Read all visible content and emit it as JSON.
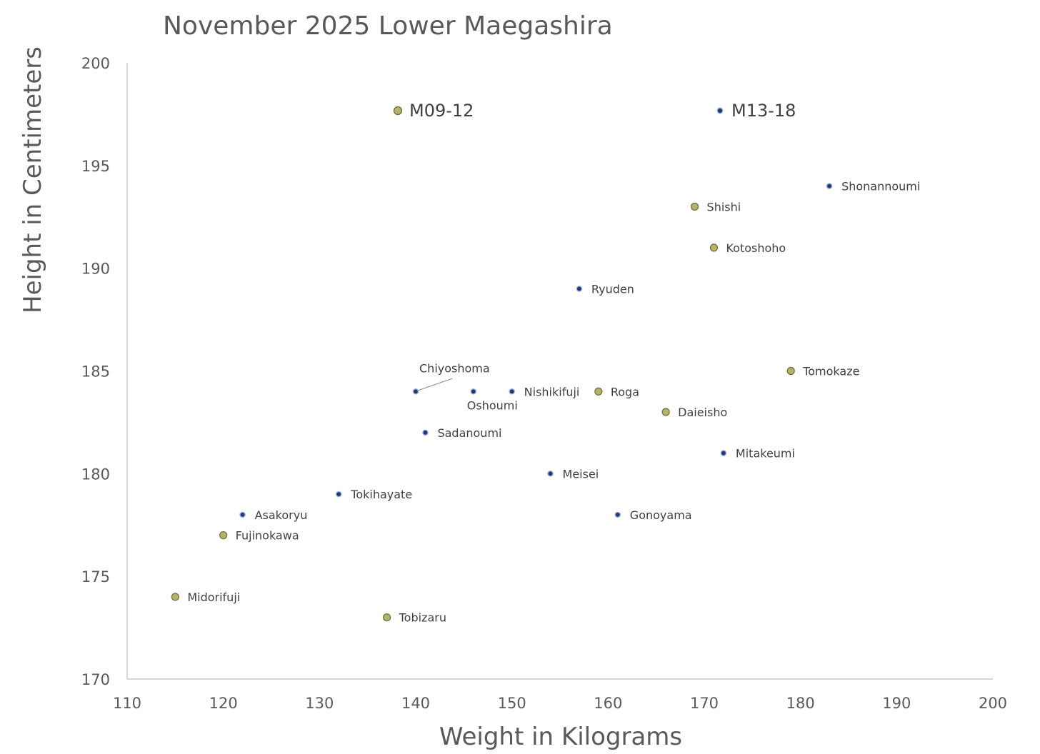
{
  "chart_data": {
    "type": "scatter",
    "title": "November 2025 Lower Maegashira",
    "xlabel": "Weight in Kilograms",
    "ylabel": "Height in Centimeters",
    "xlim": [
      110,
      200
    ],
    "ylim": [
      170,
      200
    ],
    "xticks": [
      110,
      120,
      130,
      140,
      150,
      160,
      170,
      180,
      190,
      200
    ],
    "yticks": [
      170,
      175,
      180,
      185,
      190,
      195,
      200
    ],
    "grid": false,
    "legend": "top",
    "series": [
      {
        "name": "M09-12",
        "color": "#b3b36b",
        "edge_color": "#6e6e3a",
        "points": [
          {
            "label": "Shishi",
            "x": 169,
            "y": 193
          },
          {
            "label": "Kotoshoho",
            "x": 171,
            "y": 191
          },
          {
            "label": "Tomokaze",
            "x": 179,
            "y": 185
          },
          {
            "label": "Roga",
            "x": 159,
            "y": 184
          },
          {
            "label": "Daieisho",
            "x": 166,
            "y": 183
          },
          {
            "label": "Fujinokawa",
            "x": 120,
            "y": 177
          },
          {
            "label": "Midorifuji",
            "x": 115,
            "y": 174
          },
          {
            "label": "Tobizaru",
            "x": 137,
            "y": 173
          }
        ]
      },
      {
        "name": "M13-18",
        "color": "#1f3a6e",
        "edge_color": "#9fb3d9",
        "points": [
          {
            "label": "Shonannoumi",
            "x": 183,
            "y": 194
          },
          {
            "label": "Ryuden",
            "x": 157,
            "y": 189
          },
          {
            "label": "Chiyoshoma",
            "x": 140,
            "y": 184
          },
          {
            "label": "Oshoumi",
            "x": 146,
            "y": 184
          },
          {
            "label": "Nishikifuji",
            "x": 150,
            "y": 184
          },
          {
            "label": "Sadanoumi",
            "x": 141,
            "y": 182
          },
          {
            "label": "Mitakeumi",
            "x": 172,
            "y": 181
          },
          {
            "label": "Meisei",
            "x": 154,
            "y": 180
          },
          {
            "label": "Tokihayate",
            "x": 132,
            "y": 179
          },
          {
            "label": "Asakoryu",
            "x": 122,
            "y": 178
          },
          {
            "label": "Gonoyama",
            "x": 161,
            "y": 178
          }
        ]
      }
    ]
  }
}
